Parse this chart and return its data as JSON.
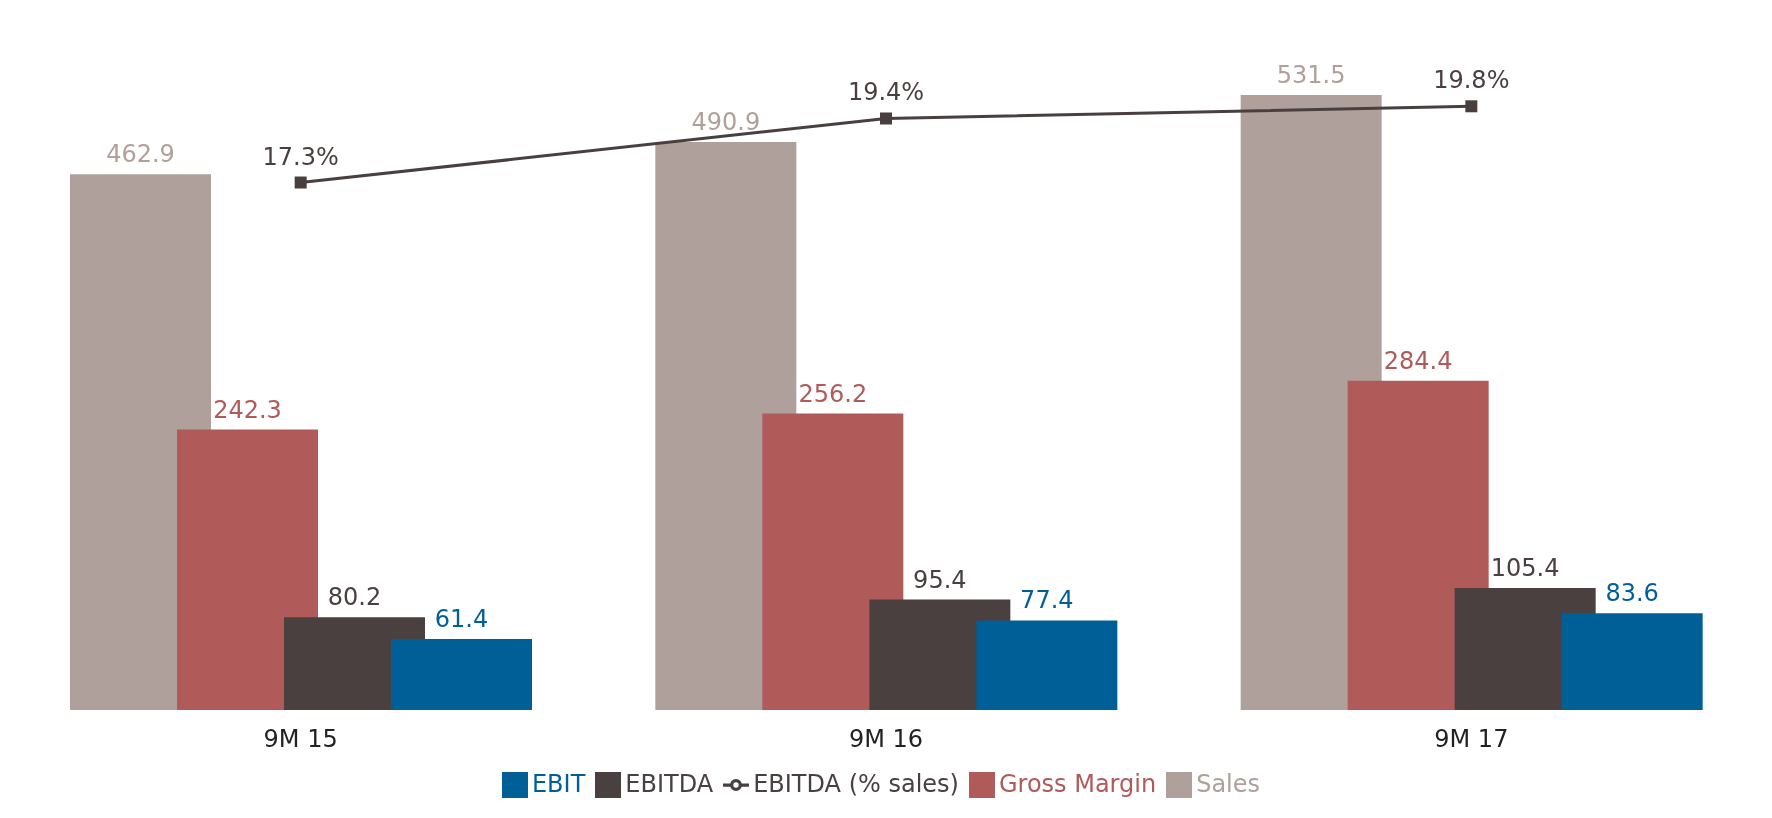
{
  "chart_data": {
    "type": "bar",
    "categories": [
      "9M 15",
      "9M 16",
      "9M 17"
    ],
    "series": [
      {
        "name": "Sales",
        "color": "#b0a09b",
        "values": [
          462.9,
          490.9,
          531.5
        ]
      },
      {
        "name": "Gross Margin",
        "color": "#b05a5a",
        "values": [
          242.3,
          256.2,
          284.4
        ]
      },
      {
        "name": "EBITDA",
        "color": "#4a4040",
        "values": [
          80.2,
          95.4,
          105.4
        ]
      },
      {
        "name": "EBIT",
        "color": "#005f96",
        "values": [
          61.4,
          77.4,
          83.6
        ]
      },
      {
        "name": "EBITDA (% sales)",
        "type": "line",
        "axis": "y2",
        "color": "#4a3f3f",
        "marker": "square",
        "values": [
          17.3,
          19.4,
          19.8
        ],
        "value_labels": [
          "17.3%",
          "19.4%",
          "19.8%"
        ]
      }
    ],
    "data_labels": true,
    "legend": "bottom",
    "grid": false,
    "tick_labels": "x"
  }
}
